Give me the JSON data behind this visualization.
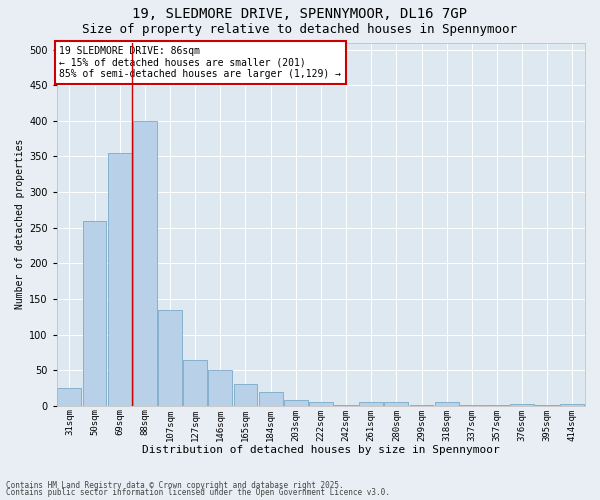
{
  "title1": "19, SLEDMORE DRIVE, SPENNYMOOR, DL16 7GP",
  "title2": "Size of property relative to detached houses in Spennymoor",
  "xlabel": "Distribution of detached houses by size in Spennymoor",
  "ylabel": "Number of detached properties",
  "categories": [
    "31sqm",
    "50sqm",
    "69sqm",
    "88sqm",
    "107sqm",
    "127sqm",
    "146sqm",
    "165sqm",
    "184sqm",
    "203sqm",
    "222sqm",
    "242sqm",
    "261sqm",
    "280sqm",
    "299sqm",
    "318sqm",
    "337sqm",
    "357sqm",
    "376sqm",
    "395sqm",
    "414sqm"
  ],
  "values": [
    25,
    260,
    355,
    400,
    135,
    65,
    50,
    30,
    20,
    8,
    5,
    1,
    5,
    5,
    1,
    5,
    1,
    1,
    2,
    1,
    2
  ],
  "bar_color": "#b8d0e8",
  "bar_edge_color": "#7aaac8",
  "vline_color": "#cc0000",
  "vline_x": 2.5,
  "annotation_text": "19 SLEDMORE DRIVE: 86sqm\n← 15% of detached houses are smaller (201)\n85% of semi-detached houses are larger (1,129) →",
  "ylim": [
    0,
    510
  ],
  "yticks": [
    0,
    50,
    100,
    150,
    200,
    250,
    300,
    350,
    400,
    450,
    500
  ],
  "grid_color": "#ffffff",
  "bg_color": "#dde8f0",
  "fig_bg_color": "#e8eef4",
  "footer1": "Contains HM Land Registry data © Crown copyright and database right 2025.",
  "footer2": "Contains public sector information licensed under the Open Government Licence v3.0.",
  "title_fontsize": 10,
  "subtitle_fontsize": 9,
  "tick_fontsize": 6.5,
  "label_fontsize": 8,
  "ann_fontsize": 7
}
